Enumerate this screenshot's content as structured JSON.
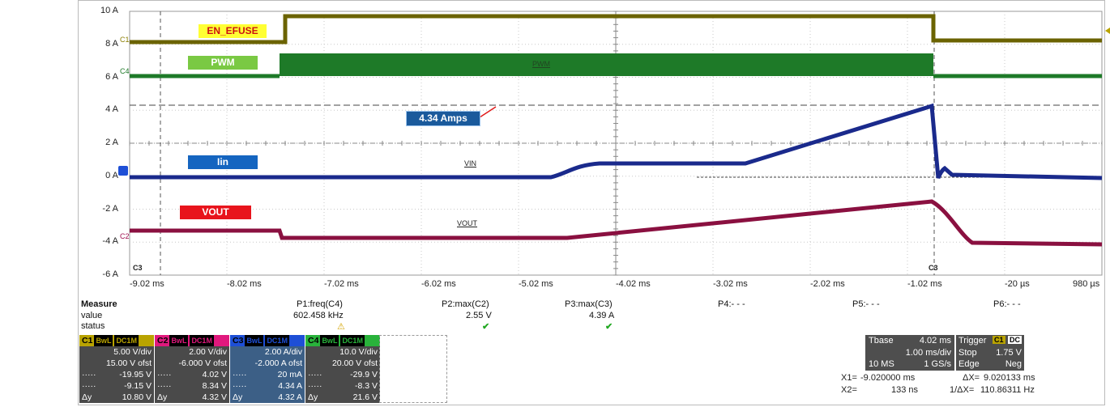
{
  "scope": {
    "y_axis": [
      "10 A",
      "8 A",
      "6 A",
      "4 A",
      "2 A",
      "0 A",
      "-2 A",
      "-4 A",
      "-6 A"
    ],
    "x_axis": [
      "-9.02 ms",
      "-8.02 ms",
      "-7.02 ms",
      "-6.02 ms",
      "-5.02 ms",
      "-4.02 ms",
      "-3.02 ms",
      "-2.02 ms",
      "-1.02 ms",
      "-20 µs",
      "980 µs"
    ],
    "channel_markers": {
      "c1": "C1",
      "c4": "C4",
      "c2": "C2",
      "c3_left": "C3",
      "c3_right": "C3"
    },
    "labels": {
      "en_efuse": "EN_EFUSE",
      "pwm": "PWM",
      "iin": "Iin",
      "vout": "VOUT",
      "amps": "4.34 Amps",
      "pwm_trace": "PWM",
      "vin_trace": "VIN",
      "vout_trace": "VOUT"
    },
    "colors": {
      "en_efuse_trace": "#6b6300",
      "pwm_trace": "#1e7a28",
      "iin_trace": "#1a2a8c",
      "vout_trace": "#8a1040",
      "en_efuse_tag_bg": "#ffff33",
      "en_efuse_tag_fg": "#cc1111",
      "pwm_tag_bg": "#7ac943",
      "iin_tag_bg": "#1565c0",
      "vout_tag_bg": "#e8141c",
      "amps_tag_bg": "#1a5a9c"
    },
    "cursor_line_4A": "4.34 A"
  },
  "measure": {
    "header": "Measure",
    "row_value_label": "value",
    "row_status_label": "status",
    "params": [
      {
        "name": "P1:freq(C4)",
        "value": "602.458 kHz",
        "status": "⚠"
      },
      {
        "name": "P2:max(C2)",
        "value": "2.55 V",
        "status": "✔"
      },
      {
        "name": "P3:max(C3)",
        "value": "4.39 A",
        "status": "✔"
      },
      {
        "name": "P4:- - -",
        "value": "",
        "status": ""
      },
      {
        "name": "P5:- - -",
        "value": "",
        "status": ""
      },
      {
        "name": "P6:- - -",
        "value": "",
        "status": ""
      }
    ]
  },
  "channels": [
    {
      "id": "C1",
      "color": "#b9a300",
      "bw": "BwL",
      "dc": "DC1M",
      "vdiv": "5.00 V/div",
      "ofst": "15.00 V ofst",
      "r1l": "·····",
      "r1": "-19.95 V",
      "r2l": "·····",
      "r2": "-9.15 V",
      "dyl": "Δy",
      "dy": "10.80 V"
    },
    {
      "id": "C2",
      "color": "#e0197d",
      "bw": "BwL",
      "dc": "DC1M",
      "vdiv": "2.00 V/div",
      "ofst": "-6.000 V ofst",
      "r1l": "·····",
      "r1": "4.02 V",
      "r2l": "·····",
      "r2": "8.34 V",
      "dyl": "Δy",
      "dy": "4.32 V"
    },
    {
      "id": "C3",
      "color": "#1e4fd6",
      "bw": "BwL",
      "dc": "DC1M",
      "vdiv": "2.00 A/div",
      "ofst": "-2.000 A ofst",
      "r1l": "·····",
      "r1": "20 mA",
      "r2l": "·····",
      "r2": "4.34 A",
      "dyl": "Δy",
      "dy": "4.32 A"
    },
    {
      "id": "C4",
      "color": "#29b23b",
      "bw": "BwL",
      "dc": "DC1M",
      "vdiv": "10.0 V/div",
      "ofst": "20.00 V ofst",
      "r1l": "·····",
      "r1": "-29.9 V",
      "r2l": "·····",
      "r2": "-8.3 V",
      "dyl": "Δy",
      "dy": "21.6 V"
    }
  ],
  "timebase": {
    "tbase_label": "Tbase",
    "tbase_value": "4.02 ms",
    "trigger_label": "Trigger",
    "trig_ch": "C1",
    "trig_cpl": "DC",
    "div": "1.00 ms/div",
    "stop_label": "Stop",
    "stop_value": "1.75 V",
    "samples": "10 MS",
    "rate": "1 GS/s",
    "edge_label": "Edge",
    "edge_value": "Neg"
  },
  "cursors": {
    "x1_label": "X1=",
    "x1": "-9.020000 ms",
    "dx_label": "ΔX=",
    "dx": "9.020133 ms",
    "x2_label": "X2=",
    "x2": "133 ns",
    "inv_label": "1/ΔX=",
    "inv": "110.86311 Hz"
  }
}
